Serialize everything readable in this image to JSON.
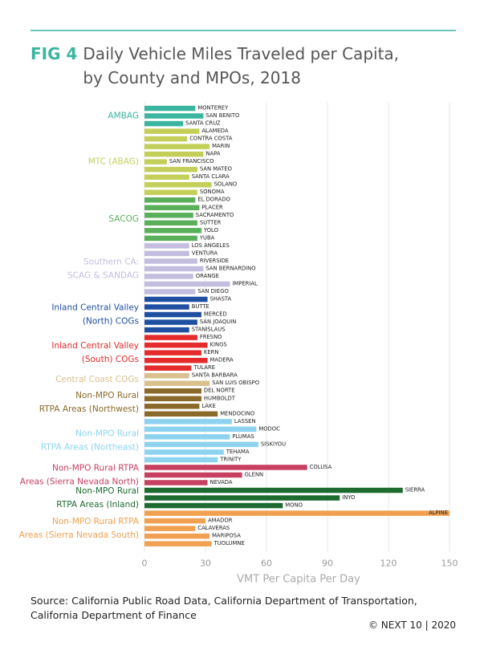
{
  "chart_data": {
    "type": "bar",
    "figure_label": "FIG 4",
    "title": "Daily Vehicle Miles Traveled per Capita, by County and MPOs, 2018",
    "x_label": "VMT Per Capita Per Day",
    "source": "Source: California Public Road Data, California Department of Transportation, California Department of Finance",
    "copyright": "© NEXT 10 | 2020",
    "xlim": [
      0,
      150
    ],
    "xticks": [
      0,
      30,
      60,
      90,
      120,
      150
    ],
    "grid": true,
    "series": [
      {
        "name": [
          "AMBAG"
        ],
        "color": "#3bb5a0",
        "categories": [
          "MONTEREY",
          "SAN BENITO",
          "SANTA CRUZ"
        ],
        "values": [
          25,
          29,
          19
        ]
      },
      {
        "name": [
          "MTC (ABAG)"
        ],
        "color": "#c4cf5a",
        "categories": [
          "ALAMEDA",
          "CONTRA COSTA",
          "MARIN",
          "NAPA",
          "SAN FRANCISCO",
          "SAN MATEO",
          "SANTA CLARA",
          "SOLANO",
          "SONOMA"
        ],
        "values": [
          27,
          21,
          32,
          29,
          11,
          26,
          22,
          33,
          26
        ]
      },
      {
        "name": [
          "SACOG"
        ],
        "color": "#5aaf5a",
        "categories": [
          "EL DORADO",
          "PLACER",
          "SACRAMENTO",
          "SUTTER",
          "YOLO",
          "YUBA"
        ],
        "values": [
          25,
          27,
          24,
          26,
          28,
          26
        ]
      },
      {
        "name": [
          "Southern CA:",
          "SCAG & SANDAG"
        ],
        "color": "#c3bde0",
        "categories": [
          "LOS ANGELES",
          "VENTURA",
          "RIVERSIDE",
          "SAN BERNARDINO",
          "ORANGE",
          "IMPERIAL",
          "SAN DIEGO"
        ],
        "values": [
          22,
          22,
          26,
          29,
          24,
          42,
          25
        ]
      },
      {
        "name": [
          "Inland Central Valley",
          "(North) COGs"
        ],
        "color": "#1f4fa0",
        "categories": [
          "SHASTA",
          "BUTTE",
          "MERCED",
          "SAN JOAQUIN",
          "STANISLAUS"
        ],
        "values": [
          31,
          22,
          28,
          26,
          22
        ]
      },
      {
        "name": [
          "Inland Central Valley",
          "(South) COGs"
        ],
        "color": "#e52b2b",
        "categories": [
          "FRESNO",
          "KINGS",
          "KERN",
          "MADERA",
          "TULARE"
        ],
        "values": [
          26,
          31,
          28,
          31,
          23
        ]
      },
      {
        "name": [
          "Central Coast COGs"
        ],
        "color": "#d9c08c",
        "categories": [
          "SANTA BARBARA",
          "SAN LUIS OBISPO"
        ],
        "values": [
          22,
          32
        ]
      },
      {
        "name": [
          "Non-MPO Rural",
          "RTPA Areas (Northwest)"
        ],
        "color": "#8a6a2a",
        "categories": [
          "DEL NORTE",
          "HUMBOLDT",
          "LAKE",
          "MENDOCINO"
        ],
        "values": [
          28,
          28,
          27,
          36
        ]
      },
      {
        "name": [
          "Non-MPO Rural",
          "RTPA Areas (Northeast)"
        ],
        "color": "#8dd3f0",
        "categories": [
          "LASSEN",
          "MODOC",
          "PLUMAS",
          "SISKIYOU",
          "TEHAMA",
          "TRINITY"
        ],
        "values": [
          43,
          55,
          42,
          56,
          39,
          36
        ]
      },
      {
        "name": [
          "Non-MPO Rural RTPA",
          "Areas (Sierra Nevada North)"
        ],
        "color": "#c8405f",
        "categories": [
          "COLUSA",
          "GLENN",
          "NEVADA"
        ],
        "values": [
          80,
          48,
          31
        ]
      },
      {
        "name": [
          "Non-MPO Rural",
          "RTPA Areas (Inland)"
        ],
        "color": "#1e6b30",
        "categories": [
          "SIERRA",
          "INYO",
          "MONO"
        ],
        "values": [
          127,
          96,
          68
        ]
      },
      {
        "name": [
          "Non-MPO Rural RTPA",
          "Areas (Sierra Nevada South)"
        ],
        "color": "#f0a050",
        "categories": [
          "ALPINE",
          "AMADOR",
          "CALAVERAS",
          "MARIPOSA",
          "TUOLUMNE"
        ],
        "values": [
          150,
          30,
          25,
          32,
          33
        ]
      }
    ]
  }
}
